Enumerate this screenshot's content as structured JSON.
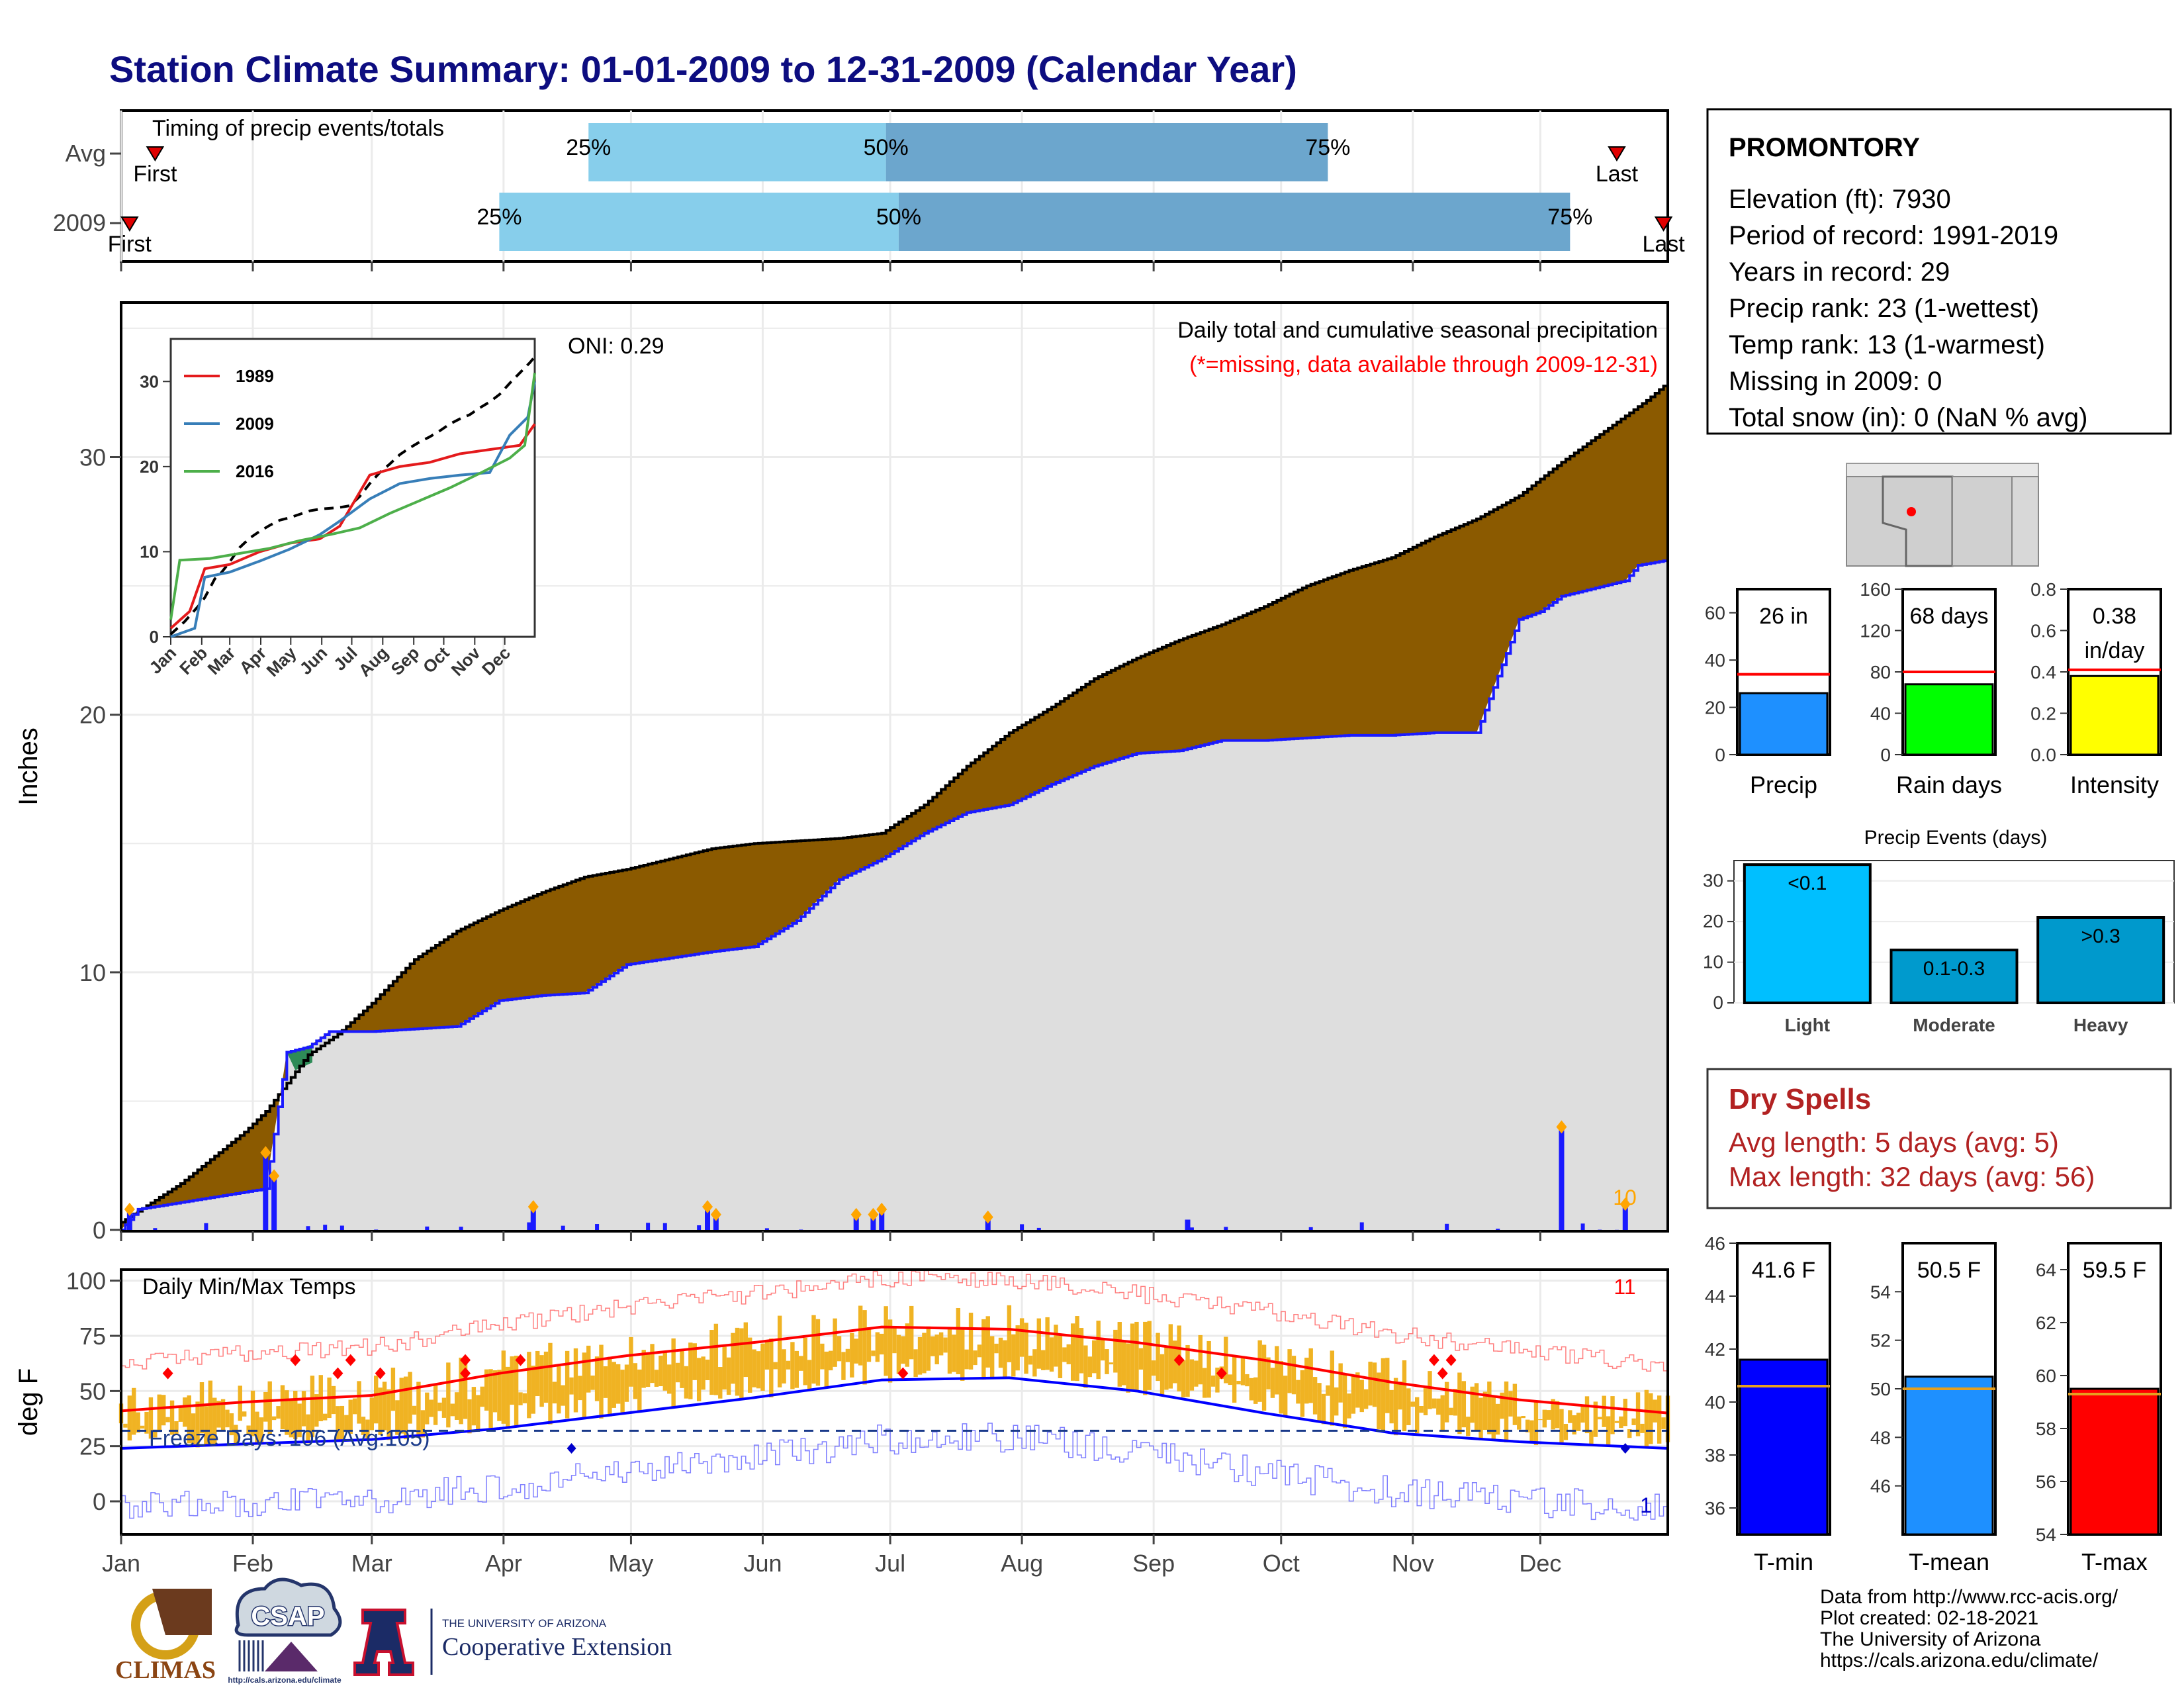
{
  "title": "Station Climate Summary: 01-01-2009 to 12-31-2009 (Calendar Year)",
  "colors": {
    "light_blue": "#87ceeb",
    "mid_blue": "#6ca6cd",
    "brown": "#8b5a00",
    "gray_fill": "#dedede",
    "navy": "#1a1adb",
    "orange": "#f0b323",
    "red": "#ff0000",
    "dark_red": "#b22222"
  },
  "timing": {
    "label": "Timing of precip events/totals",
    "rows": [
      {
        "name": "Avg",
        "first": "First",
        "last": "Last",
        "first_date": "01-09",
        "p25_date": "04-21",
        "p50_date": "06-30",
        "p75_date": "10-12",
        "last_date": "12-19"
      },
      {
        "name": "2009",
        "first": "First",
        "last": "Last",
        "first_date": "01-03",
        "p25_date": "03-31",
        "p50_date": "07-03",
        "p75_date": "12-08",
        "last_date": "12-30"
      }
    ],
    "pct_labels": [
      "25%",
      "50%",
      "75%"
    ]
  },
  "precip_panel": {
    "ylabel": "Inches",
    "oni": "ONI: 0.29",
    "header": "Daily total and cumulative seasonal precipitation",
    "subheader": "(*=missing, data available through 2009-12-31)",
    "corner_count": "10",
    "yticks": [
      "0",
      "10",
      "20",
      "30"
    ]
  },
  "inset": {
    "legend": [
      "1989",
      "2009",
      "2016"
    ],
    "yticks": [
      "0",
      "10",
      "20",
      "30"
    ],
    "xticks": [
      "Jan",
      "Feb",
      "Mar",
      "Apr",
      "May",
      "Jun",
      "Jul",
      "Aug",
      "Sep",
      "Oct",
      "Nov",
      "Dec"
    ]
  },
  "temp_panel": {
    "ylabel": "deg F",
    "header": "Daily Min/Max Temps",
    "corner_high": "11",
    "corner_low": "1",
    "freeze": "Freeze Days: 106 (Avg:105)",
    "yticks": [
      "0",
      "25",
      "50",
      "75",
      "100"
    ]
  },
  "months": [
    "Jan",
    "Feb",
    "Mar",
    "Apr",
    "May",
    "Jun",
    "Jul",
    "Aug",
    "Sep",
    "Oct",
    "Nov",
    "Dec"
  ],
  "station": {
    "name": "PROMONTORY",
    "lines": [
      "Elevation (ft): 7930",
      "Period of record: 1991-2019",
      "Years in record: 29",
      "Precip rank: 23 (1-wettest)",
      "Temp rank: 13 (1-warmest)",
      "Missing in 2009: 0",
      "Total snow (in): 0 (NaN % avg)"
    ]
  },
  "gauges": [
    {
      "label": "Precip",
      "value_text": "26 in",
      "value": 26,
      "avg": 34,
      "ymax": 70,
      "ticks": [
        "0",
        "20",
        "40",
        "60"
      ],
      "color": "#1e90ff"
    },
    {
      "label": "Rain days",
      "value_text": "68 days",
      "value": 68,
      "avg": 80,
      "ymax": 160,
      "ticks": [
        "0",
        "40",
        "80",
        "120",
        "160"
      ],
      "color": "#00ff00"
    },
    {
      "label": "Intensity",
      "value_text": "0.38",
      "value_text2": "in/day",
      "value": 0.38,
      "avg": 0.41,
      "ymax": 0.8,
      "ticks": [
        "0.0",
        "0.2",
        "0.4",
        "0.6",
        "0.8"
      ],
      "color": "#ffff00"
    }
  ],
  "events": {
    "title": "Precip Events (days)",
    "categories": [
      "Light",
      "Moderate",
      "Heavy"
    ],
    "bar_labels": [
      "<0.1",
      "0.1-0.3",
      ">0.3"
    ],
    "values": [
      34,
      13,
      21
    ],
    "ticks": [
      "0",
      "10",
      "20",
      "30"
    ],
    "colors": [
      "#00bfff",
      "#009acd",
      "#0099cc"
    ]
  },
  "dry_spells": {
    "title": "Dry Spells",
    "avg": "Avg length: 5 days (avg: 5)",
    "max": "Max length: 32 days (avg: 56)"
  },
  "temp_gauges": [
    {
      "label": "T-min",
      "value_text": "41.6 F",
      "value": 41.6,
      "avg": 40.6,
      "ymin": 35,
      "ymax": 46,
      "ticks": [
        "36",
        "38",
        "40",
        "42",
        "44",
        "46"
      ],
      "color": "#0000ff"
    },
    {
      "label": "T-mean",
      "value_text": "50.5 F",
      "value": 50.5,
      "avg": 50.0,
      "ymin": 44,
      "ymax": 56,
      "ticks": [
        "46",
        "48",
        "50",
        "52",
        "54"
      ],
      "color": "#1e90ff"
    },
    {
      "label": "T-max",
      "value_text": "59.5 F",
      "value": 59.5,
      "avg": 59.3,
      "ymin": 54,
      "ymax": 65,
      "ticks": [
        "54",
        "56",
        "58",
        "60",
        "62",
        "64"
      ],
      "color": "#ff0000"
    }
  ],
  "credits": [
    "Data from http://www.rcc-acis.org/",
    "Plot created: 02-18-2021",
    "The University of Arizona",
    "https://cals.arizona.edu/climate/"
  ],
  "logos": {
    "climas": "CLIMAS",
    "csap": "CSAP",
    "csap_url": "http://cals.arizona.edu/climate",
    "ua_line1": "THE UNIVERSITY OF ARIZONA",
    "ua_line2": "Cooperative Extension",
    "ua_letter": "A"
  },
  "chart_data": {
    "type": "area",
    "title": "Station Climate Summary: 01-01-2009 to 12-31-2009 (Calendar Year)",
    "ylabel": "Inches",
    "ylim": [
      0,
      36
    ],
    "x_unit": "day of year 2009",
    "series": [
      {
        "name": "Avg cumulative",
        "x": [
          1,
          15,
          30,
          35,
          45,
          52,
          60,
          70,
          80,
          90,
          100,
          110,
          120,
          140,
          150,
          160,
          170,
          180,
          190,
          200,
          210,
          220,
          230,
          240,
          250,
          260,
          270,
          280,
          290,
          300,
          310,
          320,
          330,
          340,
          350,
          360,
          365
        ],
        "values": [
          0.3,
          1.8,
          3.8,
          4.6,
          6.8,
          7.6,
          8.8,
          10.5,
          11.6,
          12.4,
          13.1,
          13.7,
          14.0,
          14.8,
          15.0,
          15.1,
          15.2,
          15.4,
          16.5,
          18.0,
          19.3,
          20.3,
          21.4,
          22.2,
          22.9,
          23.5,
          24.2,
          25.0,
          25.6,
          26.1,
          26.9,
          27.6,
          28.5,
          29.8,
          31.0,
          32.2,
          32.9
        ]
      },
      {
        "name": "2009 cumulative",
        "x": [
          1,
          3,
          5,
          35,
          40,
          45,
          50,
          60,
          70,
          80,
          90,
          100,
          110,
          120,
          140,
          150,
          160,
          170,
          180,
          190,
          200,
          210,
          220,
          230,
          240,
          250,
          260,
          270,
          280,
          290,
          300,
          310,
          320,
          330,
          335,
          340,
          350,
          355,
          358,
          365
        ],
        "values": [
          0.0,
          0.4,
          0.8,
          1.6,
          6.9,
          7.1,
          7.7,
          7.7,
          7.8,
          7.9,
          8.9,
          9.1,
          9.2,
          10.3,
          10.8,
          11.0,
          12.0,
          13.6,
          14.4,
          15.4,
          16.2,
          16.5,
          17.3,
          18.0,
          18.5,
          18.6,
          19.0,
          19.0,
          19.1,
          19.2,
          19.2,
          19.3,
          19.3,
          23.7,
          24.0,
          24.6,
          25.0,
          25.2,
          25.8,
          26.0
        ]
      },
      {
        "name": "Daily precip",
        "x": [
          3,
          35,
          37,
          98,
          139,
          141,
          174,
          178,
          180,
          205,
          252,
          340,
          355
        ],
        "values": [
          0.8,
          3.0,
          2.1,
          0.9,
          0.9,
          0.6,
          0.6,
          0.6,
          0.8,
          0.5,
          0.4,
          4.0,
          1.0
        ]
      }
    ],
    "temps": {
      "ylabel": "deg F",
      "ylim": [
        -15,
        105
      ],
      "avg_max": {
        "x": [
          1,
          30,
          60,
          90,
          120,
          150,
          180,
          210,
          240,
          270,
          300,
          330,
          365
        ],
        "values": [
          41,
          45,
          48,
          58,
          66,
          72,
          79,
          78,
          72,
          64,
          54,
          46,
          40
        ]
      },
      "avg_min": {
        "x": [
          1,
          30,
          60,
          90,
          120,
          150,
          180,
          210,
          240,
          270,
          300,
          330,
          365
        ],
        "values": [
          24,
          26,
          28,
          33,
          40,
          47,
          55,
          56,
          50,
          40,
          31,
          27,
          24
        ]
      },
      "freeze_line": 32
    }
  }
}
